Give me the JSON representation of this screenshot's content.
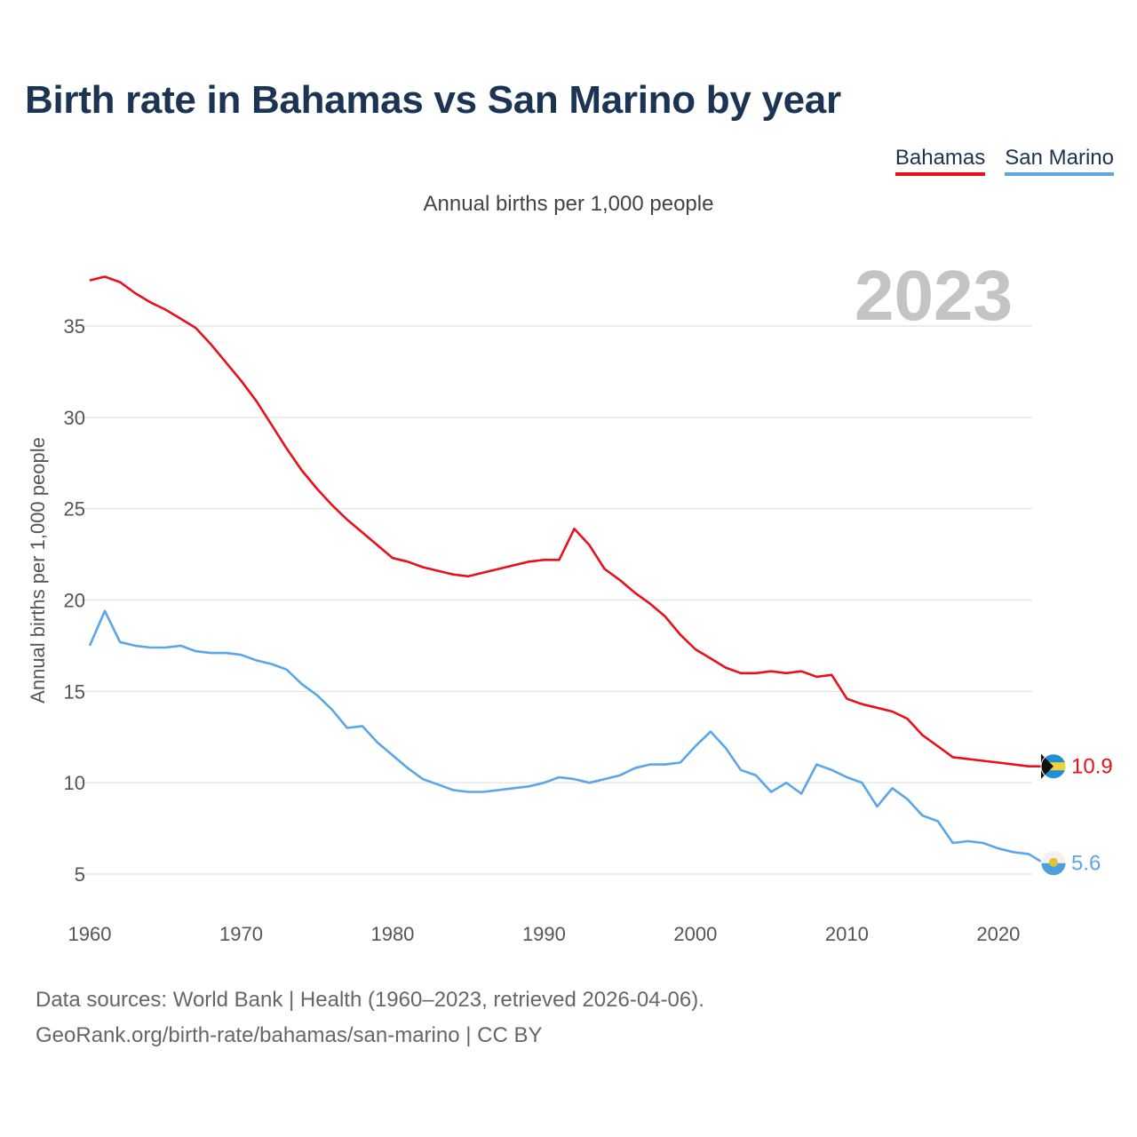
{
  "title": "Birth rate in Bahamas vs San Marino by year",
  "subtitle": "Annual births per 1,000 people",
  "year_watermark": "2023",
  "footer": {
    "line1": "Data sources: World Bank | Health (1960–2023, retrieved 2026-04-06).",
    "line2": "GeoRank.org/birth-rate/bahamas/san-marino | CC BY"
  },
  "colors": {
    "title": "#1b3454",
    "bahamas": "#e8101a",
    "san_marino": "#5aa6e8",
    "grid": "#e6e6e6"
  },
  "chart_data": {
    "type": "line",
    "title": "Birth rate in Bahamas vs San Marino by year",
    "xlabel": "",
    "ylabel": "Annual births per 1,000 people",
    "xlim": [
      1960,
      2023
    ],
    "ylim": [
      3,
      38
    ],
    "xticks": [
      1960,
      1970,
      1980,
      1990,
      2000,
      2010,
      2020
    ],
    "yticks": [
      5,
      10,
      15,
      20,
      25,
      30,
      35
    ],
    "grid": true,
    "legend_position": "top-right",
    "x": [
      1960,
      1961,
      1962,
      1963,
      1964,
      1965,
      1966,
      1967,
      1968,
      1969,
      1970,
      1971,
      1972,
      1973,
      1974,
      1975,
      1976,
      1977,
      1978,
      1979,
      1980,
      1981,
      1982,
      1983,
      1984,
      1985,
      1986,
      1987,
      1988,
      1989,
      1990,
      1991,
      1992,
      1993,
      1994,
      1995,
      1996,
      1997,
      1998,
      1999,
      2000,
      2001,
      2002,
      2003,
      2004,
      2005,
      2006,
      2007,
      2008,
      2009,
      2010,
      2011,
      2012,
      2013,
      2014,
      2015,
      2016,
      2017,
      2018,
      2019,
      2020,
      2021,
      2022,
      2023
    ],
    "series": [
      {
        "name": "Bahamas",
        "end_label": "10.9",
        "values": [
          37.5,
          37.7,
          37.4,
          36.8,
          36.3,
          35.9,
          35.4,
          34.9,
          34.0,
          33.0,
          32.0,
          30.9,
          29.6,
          28.3,
          27.1,
          26.1,
          25.2,
          24.4,
          23.7,
          23.0,
          22.3,
          22.1,
          21.8,
          21.6,
          21.4,
          21.3,
          21.5,
          21.7,
          21.9,
          22.1,
          22.2,
          22.2,
          23.9,
          23.0,
          21.7,
          21.1,
          20.4,
          19.8,
          19.1,
          18.1,
          17.3,
          16.8,
          16.3,
          16.0,
          16.0,
          16.1,
          16.0,
          16.1,
          15.8,
          15.9,
          14.6,
          14.3,
          14.1,
          13.9,
          13.5,
          12.6,
          12.0,
          11.4,
          11.3,
          11.2,
          11.1,
          11.0,
          10.9,
          10.9
        ]
      },
      {
        "name": "San Marino",
        "end_label": "5.6",
        "values": [
          17.5,
          19.4,
          17.7,
          17.5,
          17.4,
          17.4,
          17.5,
          17.2,
          17.1,
          17.1,
          17.0,
          16.7,
          16.5,
          16.2,
          15.4,
          14.8,
          14.0,
          13.0,
          13.1,
          12.2,
          11.5,
          10.8,
          10.2,
          9.9,
          9.6,
          9.5,
          9.5,
          9.6,
          9.7,
          9.8,
          10.0,
          10.3,
          10.2,
          10.0,
          10.2,
          10.4,
          10.8,
          11.0,
          11.0,
          11.1,
          12.0,
          12.8,
          11.9,
          10.7,
          10.4,
          9.5,
          10.0,
          9.4,
          11.0,
          10.7,
          10.3,
          10.0,
          8.7,
          9.7,
          9.1,
          8.2,
          7.9,
          6.7,
          6.8,
          6.7,
          6.4,
          6.2,
          6.1,
          5.6
        ]
      }
    ]
  }
}
